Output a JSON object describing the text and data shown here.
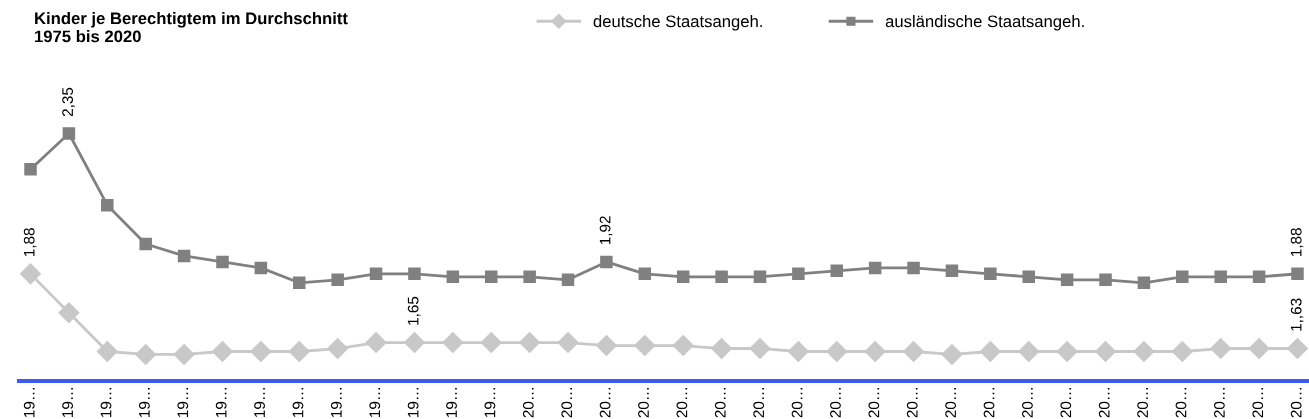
{
  "chart_data": {
    "type": "line",
    "title": "Kinder je Berechtigtem im Durchschnitt\n1975 bis 2020",
    "categories": [
      "19…",
      "19…",
      "19…",
      "19…",
      "19…",
      "19…",
      "19…",
      "19…",
      "19…",
      "19…",
      "19…",
      "19…",
      "19…",
      "20…",
      "20…",
      "20…",
      "20…",
      "20…",
      "20…",
      "20…",
      "20…",
      "20…",
      "20…",
      "20…",
      "20…",
      "20…",
      "20…",
      "20…",
      "20…",
      "20…",
      "20…",
      "20…",
      "20…",
      "20…"
    ],
    "series": [
      {
        "name": "deutsche Staatsangeh.",
        "color": "#c8c8c8",
        "marker": "diamond",
        "values": [
          1.88,
          1.75,
          1.62,
          1.61,
          1.61,
          1.62,
          1.62,
          1.62,
          1.63,
          1.65,
          1.65,
          1.65,
          1.65,
          1.65,
          1.65,
          1.64,
          1.64,
          1.64,
          1.63,
          1.63,
          1.62,
          1.62,
          1.62,
          1.62,
          1.61,
          1.62,
          1.62,
          1.62,
          1.62,
          1.62,
          1.62,
          1.63,
          1.63,
          1.63
        ],
        "value_labels": [
          "1,88",
          null,
          null,
          null,
          null,
          null,
          null,
          null,
          null,
          null,
          "1,65",
          null,
          null,
          null,
          null,
          null,
          null,
          null,
          null,
          null,
          null,
          null,
          null,
          null,
          null,
          null,
          null,
          null,
          null,
          null,
          null,
          null,
          null,
          "1,,63"
        ]
      },
      {
        "name": "ausländische Staatsangeh.",
        "color": "#808080",
        "marker": "square",
        "values": [
          2.23,
          2.35,
          2.11,
          1.98,
          1.94,
          1.92,
          1.9,
          1.85,
          1.86,
          1.88,
          1.88,
          1.87,
          1.87,
          1.87,
          1.86,
          1.92,
          1.88,
          1.87,
          1.87,
          1.87,
          1.88,
          1.89,
          1.9,
          1.9,
          1.89,
          1.88,
          1.87,
          1.86,
          1.86,
          1.85,
          1.87,
          1.87,
          1.87,
          1.88
        ],
        "value_labels": [
          null,
          "2,35",
          null,
          null,
          null,
          null,
          null,
          null,
          null,
          null,
          null,
          null,
          null,
          null,
          null,
          "1,92",
          null,
          null,
          null,
          null,
          null,
          null,
          null,
          null,
          null,
          null,
          null,
          null,
          null,
          null,
          null,
          null,
          null,
          "1,88"
        ]
      }
    ],
    "tick_labels": "x",
    "legend": "top",
    "grid": false,
    "line_style": "solid"
  }
}
